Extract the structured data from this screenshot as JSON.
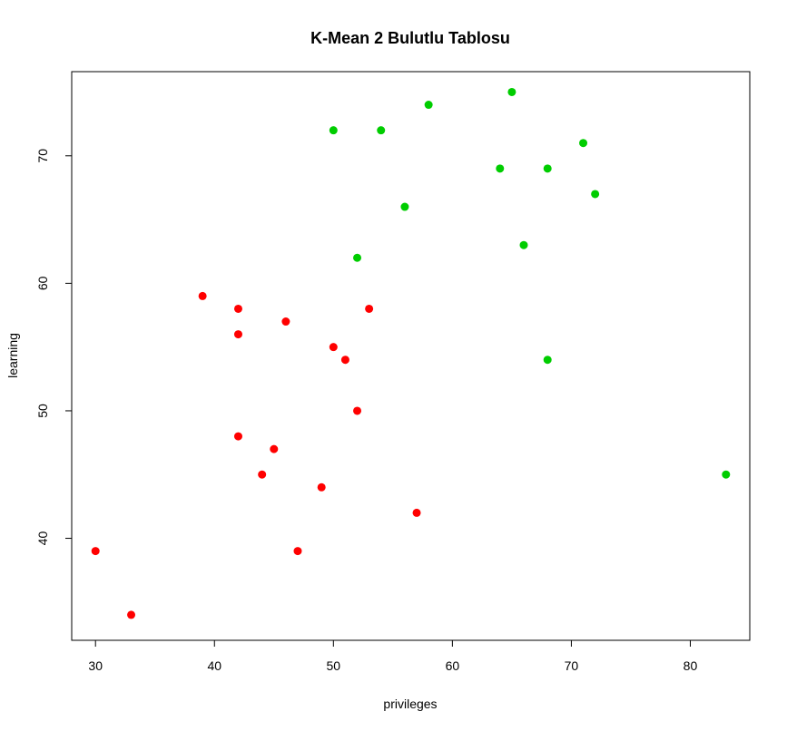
{
  "chart_data": {
    "type": "scatter",
    "title": "K-Mean 2 Bulutlu Tablosu",
    "xlabel": "privileges",
    "ylabel": "learning",
    "xlim": [
      28,
      85
    ],
    "ylim": [
      32,
      76.6
    ],
    "xticks": [
      30,
      40,
      50,
      60,
      70,
      80
    ],
    "yticks": [
      40,
      50,
      60,
      70
    ],
    "grid": false,
    "legend": "none",
    "series": [
      {
        "color": "#ff0000",
        "points": [
          [
            30,
            39
          ],
          [
            33,
            34
          ],
          [
            39,
            59
          ],
          [
            42,
            58
          ],
          [
            42,
            56
          ],
          [
            42,
            48
          ],
          [
            44,
            45
          ],
          [
            45,
            47
          ],
          [
            46,
            57
          ],
          [
            47,
            39
          ],
          [
            49,
            44
          ],
          [
            50,
            55
          ],
          [
            51,
            54
          ],
          [
            52,
            50
          ],
          [
            53,
            58
          ],
          [
            57,
            42
          ]
        ]
      },
      {
        "color": "#00cd00",
        "points": [
          [
            50,
            72
          ],
          [
            52,
            62
          ],
          [
            54,
            72
          ],
          [
            56,
            66
          ],
          [
            58,
            74
          ],
          [
            64,
            69
          ],
          [
            65,
            75
          ],
          [
            66,
            63
          ],
          [
            68,
            69
          ],
          [
            68,
            54
          ],
          [
            71,
            71
          ],
          [
            72,
            67
          ],
          [
            83,
            45
          ]
        ]
      }
    ]
  }
}
